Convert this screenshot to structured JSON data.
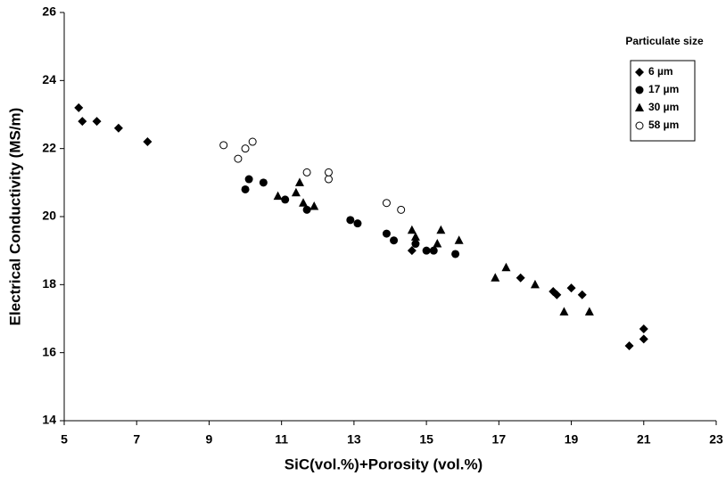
{
  "chart_data": {
    "type": "scatter",
    "xlabel": "SiC(vol.%)+Porosity (vol.%)",
    "ylabel": "Electrical Conductivity (MS/m)",
    "xlim": [
      5,
      23
    ],
    "xticks": [
      5,
      7,
      9,
      11,
      13,
      15,
      17,
      19,
      21,
      23
    ],
    "ylim": [
      14,
      26
    ],
    "yticks": [
      14,
      16,
      18,
      20,
      22,
      24,
      26
    ],
    "grid": false,
    "legend": "upper right",
    "legend_title": "Particulate size",
    "series": [
      {
        "name": "6 µm",
        "color": "#000000",
        "marker": "diamond",
        "x": [
          5.4,
          5.5,
          5.9,
          6.5,
          7.3,
          14.6,
          17.6,
          18.5,
          18.6,
          19.0,
          19.3,
          20.6,
          21.0,
          21.0
        ],
        "values": [
          23.2,
          22.8,
          22.8,
          22.6,
          22.2,
          19.0,
          18.2,
          17.8,
          17.7,
          17.9,
          17.7,
          16.2,
          16.4,
          16.7
        ]
      },
      {
        "name": "17 µm",
        "color": "#000000",
        "marker": "circle",
        "x": [
          10.0,
          10.1,
          10.5,
          11.1,
          11.7,
          12.9,
          13.1,
          13.9,
          14.1,
          14.7,
          15.0,
          15.2,
          15.8
        ],
        "values": [
          20.8,
          21.1,
          21.0,
          20.5,
          20.2,
          19.9,
          19.8,
          19.5,
          19.3,
          19.2,
          19.0,
          19.0,
          18.9
        ]
      },
      {
        "name": "30 µm",
        "color": "#000000",
        "marker": "triangle",
        "x": [
          10.9,
          11.4,
          11.5,
          11.6,
          11.9,
          14.6,
          14.7,
          15.3,
          15.4,
          15.9,
          16.9,
          17.2,
          18.0,
          18.8,
          19.5
        ],
        "values": [
          20.6,
          20.7,
          21.0,
          20.4,
          20.3,
          19.6,
          19.4,
          19.2,
          19.6,
          19.3,
          18.2,
          18.5,
          18.0,
          17.2,
          17.2
        ]
      },
      {
        "name": "58 µm",
        "color": "#000000",
        "marker": "open-circle",
        "x": [
          9.4,
          9.8,
          10.0,
          10.2,
          11.7,
          12.3,
          12.3,
          13.9,
          14.3
        ],
        "values": [
          22.1,
          21.7,
          22.0,
          22.2,
          21.3,
          21.1,
          21.3,
          20.4,
          20.2
        ]
      }
    ]
  }
}
